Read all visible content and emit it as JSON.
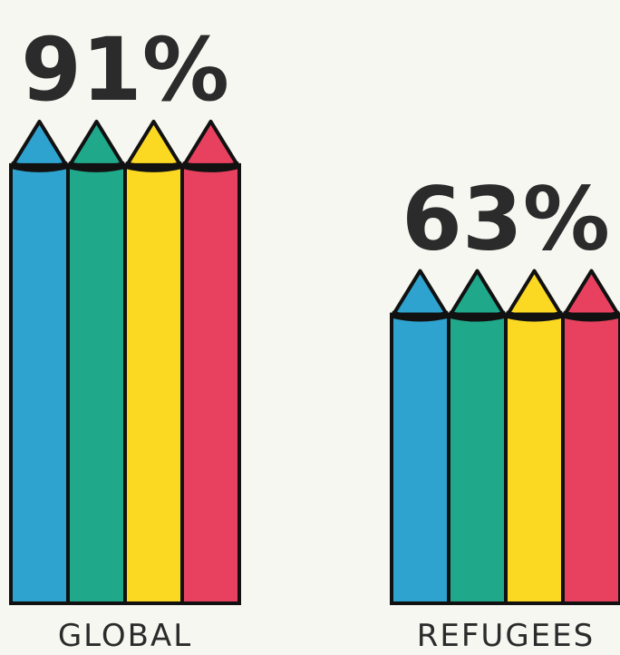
{
  "chart_data": {
    "type": "bar",
    "categories": [
      "GLOBAL",
      "REFUGEES"
    ],
    "values": [
      91,
      63
    ],
    "value_labels": [
      "91%",
      "63%"
    ],
    "colors": [
      "#2ea3d0",
      "#1fa88a",
      "#fbd922",
      "#e8415f"
    ]
  }
}
